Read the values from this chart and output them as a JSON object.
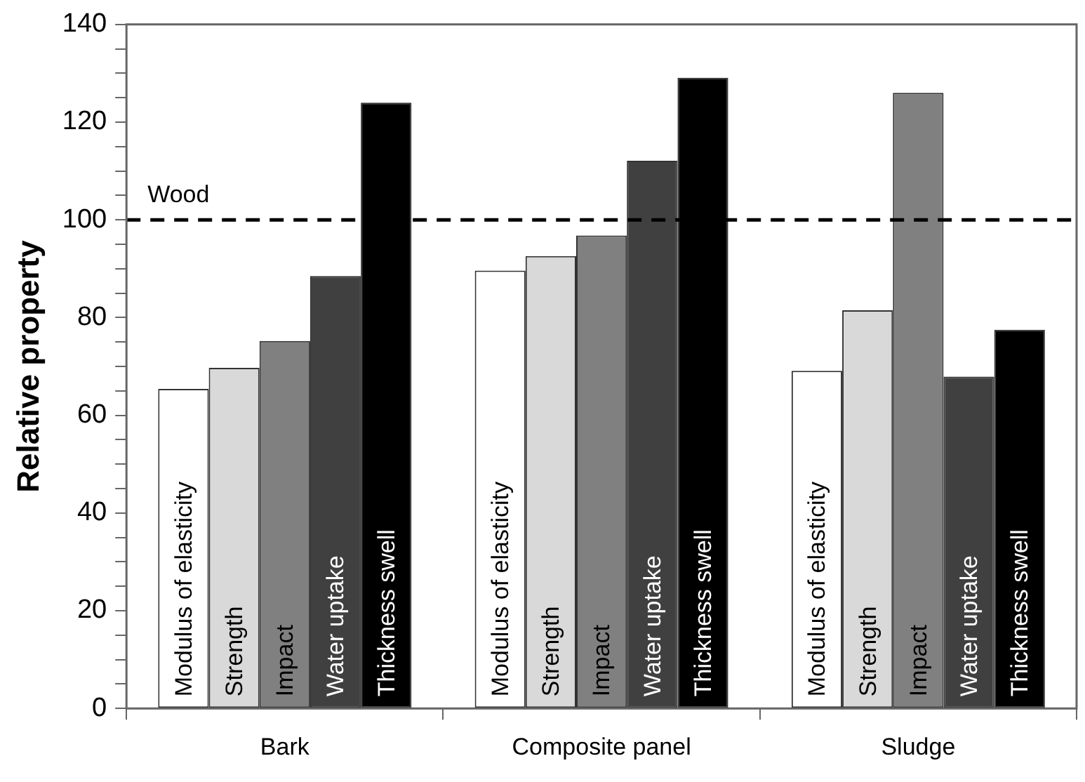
{
  "chart_data": {
    "type": "bar",
    "ylabel": "Relative property",
    "categories": [
      "Bark",
      "Composite panel",
      "Sludge"
    ],
    "series": [
      {
        "name": "Modulus of elasticity",
        "color": "#ffffff",
        "values": [
          65.4,
          89.6,
          69.1
        ]
      },
      {
        "name": "Strength",
        "color": "#d9d9d9",
        "values": [
          69.7,
          92.6,
          81.5
        ]
      },
      {
        "name": "Impact",
        "color": "#808080",
        "values": [
          75.2,
          96.8,
          126
        ]
      },
      {
        "name": "Water uptake",
        "color": "#404040",
        "values": [
          88.5,
          112.1,
          67.9
        ]
      },
      {
        "name": "Thickness swell",
        "color": "#000000",
        "values": [
          124,
          129.1,
          77.5
        ]
      }
    ],
    "ylim": [
      0,
      140
    ],
    "yticks": [
      0,
      {
        "value": 5,
        "label": null
      },
      {
        "value": 10,
        "label": null
      },
      {
        "value": 15,
        "label": null
      },
      20,
      {
        "value": 25,
        "label": null
      },
      {
        "value": 30,
        "label": null
      },
      {
        "value": 35,
        "label": null
      },
      40,
      {
        "value": 45,
        "label": null
      },
      {
        "value": 50,
        "label": null
      },
      {
        "value": 55,
        "label": null
      },
      60,
      {
        "value": 65,
        "label": null
      },
      {
        "value": 70,
        "label": null
      },
      {
        "value": 75,
        "label": null
      },
      80,
      {
        "value": 85,
        "label": null
      },
      {
        "value": 90,
        "label": null
      },
      {
        "value": 95,
        "label": null
      },
      100,
      {
        "value": 105,
        "label": null
      },
      {
        "value": 110,
        "label": null
      },
      {
        "value": 115,
        "label": null
      },
      120,
      {
        "value": 125,
        "label": null
      },
      {
        "value": 130,
        "label": null
      },
      {
        "value": 135,
        "label": null
      },
      140
    ],
    "ref_lines": [
      {
        "axis": "y",
        "value": 100,
        "label": "Wood",
        "line_style": "dashed",
        "color": "#000000"
      }
    ],
    "grid": false,
    "legend": false
  }
}
